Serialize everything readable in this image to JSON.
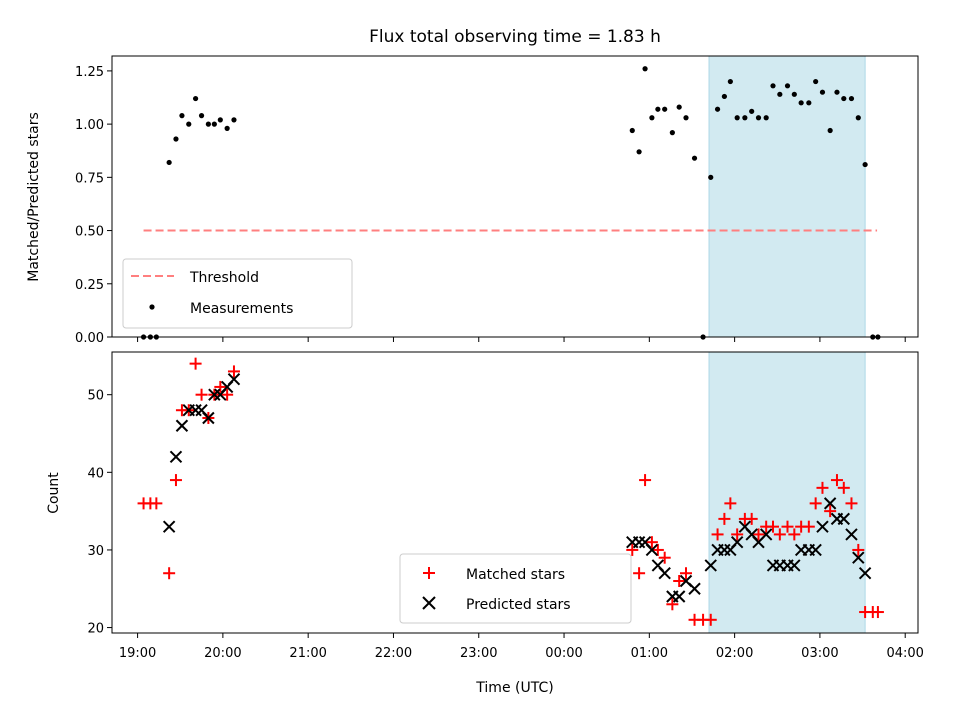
{
  "chart_data": [
    {
      "type": "scatter",
      "panel": "top",
      "title": "Flux total observing time = 1.83 h",
      "ylabel": "Matched/Predicted stars",
      "xlabel": "",
      "x_unit": "hours since 00:00 UTC (19:00 = -5)",
      "xlim": [
        -5.3,
        4.15
      ],
      "ylim": [
        0.0,
        1.32
      ],
      "yticks": [
        "0.00",
        "0.25",
        "0.50",
        "0.75",
        "1.00",
        "1.25"
      ],
      "xticks": [
        "19:00",
        "20:00",
        "21:00",
        "22:00",
        "23:00",
        "00:00",
        "01:00",
        "02:00",
        "03:00",
        "04:00"
      ],
      "grid": false,
      "legend_position": "lower-left",
      "highlight_span": {
        "x_start": 1.7,
        "x_end": 3.53,
        "color": "#add8e6"
      },
      "threshold": {
        "name": "Threshold",
        "y": 0.5,
        "x_start": -4.93,
        "x_end": 3.67,
        "color": "#ff7f7f",
        "style": "dashed"
      },
      "series": [
        {
          "name": "Measurements",
          "marker": "dot",
          "color": "#000000",
          "points": [
            [
              -4.93,
              0.0
            ],
            [
              -4.85,
              0.0
            ],
            [
              -4.78,
              0.0
            ],
            [
              -4.63,
              0.82
            ],
            [
              -4.55,
              0.93
            ],
            [
              -4.48,
              1.04
            ],
            [
              -4.4,
              1.0
            ],
            [
              -4.32,
              1.12
            ],
            [
              -4.25,
              1.04
            ],
            [
              -4.17,
              1.0
            ],
            [
              -4.1,
              1.0
            ],
            [
              -4.03,
              1.02
            ],
            [
              -3.95,
              0.98
            ],
            [
              -3.87,
              1.02
            ],
            [
              0.8,
              0.97
            ],
            [
              0.88,
              0.87
            ],
            [
              0.95,
              1.26
            ],
            [
              1.03,
              1.03
            ],
            [
              1.1,
              1.07
            ],
            [
              1.18,
              1.07
            ],
            [
              1.27,
              0.96
            ],
            [
              1.35,
              1.08
            ],
            [
              1.43,
              1.03
            ],
            [
              1.53,
              0.84
            ],
            [
              1.63,
              0.0
            ],
            [
              1.72,
              0.75
            ],
            [
              1.8,
              1.07
            ],
            [
              1.88,
              1.13
            ],
            [
              1.95,
              1.2
            ],
            [
              2.03,
              1.03
            ],
            [
              2.12,
              1.03
            ],
            [
              2.2,
              1.06
            ],
            [
              2.28,
              1.03
            ],
            [
              2.37,
              1.03
            ],
            [
              2.45,
              1.18
            ],
            [
              2.53,
              1.14
            ],
            [
              2.62,
              1.18
            ],
            [
              2.7,
              1.14
            ],
            [
              2.78,
              1.1
            ],
            [
              2.87,
              1.1
            ],
            [
              2.95,
              1.2
            ],
            [
              3.03,
              1.15
            ],
            [
              3.12,
              0.97
            ],
            [
              3.2,
              1.15
            ],
            [
              3.28,
              1.12
            ],
            [
              3.37,
              1.12
            ],
            [
              3.45,
              1.03
            ],
            [
              3.53,
              0.81
            ],
            [
              3.62,
              0.0
            ],
            [
              3.68,
              0.0
            ]
          ]
        }
      ],
      "legend": [
        {
          "label": "Threshold",
          "kind": "dashed-line",
          "color": "#ff7f7f"
        },
        {
          "label": "Measurements",
          "kind": "dot",
          "color": "#000000"
        }
      ]
    },
    {
      "type": "scatter",
      "panel": "bottom",
      "title": "",
      "ylabel": "Count",
      "xlabel": "Time (UTC)",
      "x_unit": "hours since 00:00 UTC (19:00 = -5)",
      "xlim": [
        -5.3,
        4.15
      ],
      "ylim": [
        19.3,
        55.5
      ],
      "yticks": [
        "20",
        "30",
        "40",
        "50"
      ],
      "xticks": [
        "19:00",
        "20:00",
        "21:00",
        "22:00",
        "23:00",
        "00:00",
        "01:00",
        "02:00",
        "03:00",
        "04:00"
      ],
      "grid": false,
      "legend_position": "lower-center",
      "highlight_span": {
        "x_start": 1.7,
        "x_end": 3.53,
        "color": "#add8e6"
      },
      "series": [
        {
          "name": "Matched stars",
          "marker": "plus",
          "color": "#ff0000",
          "points": [
            [
              -4.93,
              36
            ],
            [
              -4.85,
              36
            ],
            [
              -4.78,
              36
            ],
            [
              -4.63,
              27
            ],
            [
              -4.55,
              39
            ],
            [
              -4.48,
              48
            ],
            [
              -4.4,
              48
            ],
            [
              -4.32,
              54
            ],
            [
              -4.25,
              50
            ],
            [
              -4.17,
              47
            ],
            [
              -4.1,
              50
            ],
            [
              -4.03,
              51
            ],
            [
              -3.95,
              50
            ],
            [
              -3.87,
              53
            ],
            [
              0.8,
              30
            ],
            [
              0.88,
              27
            ],
            [
              0.95,
              39
            ],
            [
              1.03,
              31
            ],
            [
              1.1,
              30
            ],
            [
              1.18,
              29
            ],
            [
              1.27,
              23
            ],
            [
              1.35,
              26
            ],
            [
              1.43,
              27
            ],
            [
              1.53,
              21
            ],
            [
              1.63,
              21
            ],
            [
              1.72,
              21
            ],
            [
              1.8,
              32
            ],
            [
              1.88,
              34
            ],
            [
              1.95,
              36
            ],
            [
              2.03,
              32
            ],
            [
              2.12,
              34
            ],
            [
              2.2,
              34
            ],
            [
              2.28,
              32
            ],
            [
              2.37,
              33
            ],
            [
              2.45,
              33
            ],
            [
              2.53,
              32
            ],
            [
              2.62,
              33
            ],
            [
              2.7,
              32
            ],
            [
              2.78,
              33
            ],
            [
              2.87,
              33
            ],
            [
              2.95,
              36
            ],
            [
              3.03,
              38
            ],
            [
              3.12,
              35
            ],
            [
              3.2,
              39
            ],
            [
              3.28,
              38
            ],
            [
              3.37,
              36
            ],
            [
              3.45,
              30
            ],
            [
              3.53,
              22
            ],
            [
              3.62,
              22
            ],
            [
              3.68,
              22
            ]
          ]
        },
        {
          "name": "Predicted stars",
          "marker": "x",
          "color": "#000000",
          "points": [
            [
              -4.63,
              33
            ],
            [
              -4.55,
              42
            ],
            [
              -4.48,
              46
            ],
            [
              -4.4,
              48
            ],
            [
              -4.32,
              48
            ],
            [
              -4.25,
              48
            ],
            [
              -4.17,
              47
            ],
            [
              -4.1,
              50
            ],
            [
              -4.03,
              50
            ],
            [
              -3.95,
              51
            ],
            [
              -3.87,
              52
            ],
            [
              0.8,
              31
            ],
            [
              0.88,
              31
            ],
            [
              0.95,
              31
            ],
            [
              1.03,
              30
            ],
            [
              1.1,
              28
            ],
            [
              1.18,
              27
            ],
            [
              1.27,
              24
            ],
            [
              1.35,
              24
            ],
            [
              1.43,
              26
            ],
            [
              1.53,
              25
            ],
            [
              1.72,
              28
            ],
            [
              1.8,
              30
            ],
            [
              1.88,
              30
            ],
            [
              1.95,
              30
            ],
            [
              2.03,
              31
            ],
            [
              2.12,
              33
            ],
            [
              2.2,
              32
            ],
            [
              2.28,
              31
            ],
            [
              2.37,
              32
            ],
            [
              2.45,
              28
            ],
            [
              2.53,
              28
            ],
            [
              2.62,
              28
            ],
            [
              2.7,
              28
            ],
            [
              2.78,
              30
            ],
            [
              2.87,
              30
            ],
            [
              2.95,
              30
            ],
            [
              3.03,
              33
            ],
            [
              3.12,
              36
            ],
            [
              3.2,
              34
            ],
            [
              3.28,
              34
            ],
            [
              3.37,
              32
            ],
            [
              3.45,
              29
            ],
            [
              3.53,
              27
            ]
          ]
        }
      ],
      "legend": [
        {
          "label": "Matched stars",
          "kind": "plus",
          "color": "#ff0000"
        },
        {
          "label": "Predicted stars",
          "kind": "x",
          "color": "#000000"
        }
      ]
    }
  ]
}
